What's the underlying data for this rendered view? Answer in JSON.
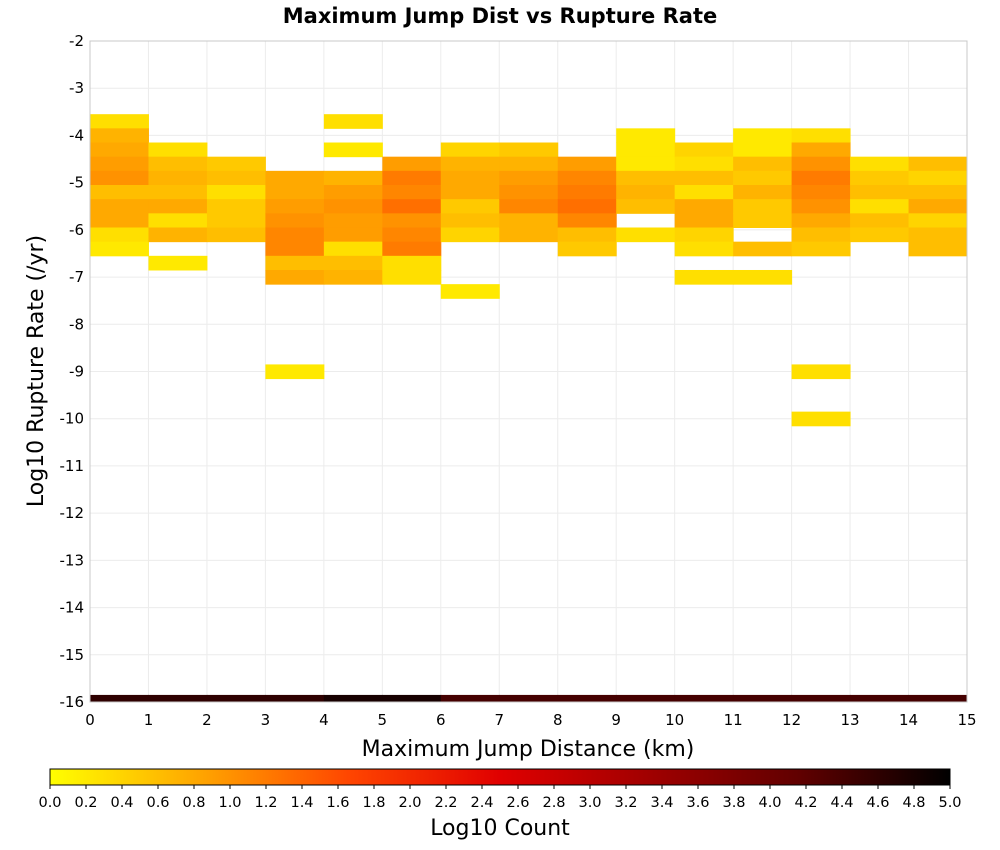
{
  "chart_data": {
    "type": "heatmap",
    "title": "Maximum Jump Dist vs Rupture Rate",
    "xlabel": "Maximum Jump Distance (km)",
    "ylabel": "Log10 Rupture Rate (/yr)",
    "xlim": [
      0,
      15
    ],
    "ylim": [
      -16,
      -2
    ],
    "x_ticks": [
      0,
      1,
      2,
      3,
      4,
      5,
      6,
      7,
      8,
      9,
      10,
      11,
      12,
      13,
      14,
      15
    ],
    "y_ticks": [
      -2,
      -3,
      -4,
      -5,
      -6,
      -7,
      -8,
      -9,
      -10,
      -11,
      -12,
      -13,
      -14,
      -15,
      -16
    ],
    "grid": true,
    "x_bin_width": 1,
    "y_bin_height": 0.3,
    "colorbar": {
      "label": "Log10 Count",
      "range": [
        0.0,
        5.0
      ],
      "ticks": [
        "0.0",
        "0.2",
        "0.4",
        "0.6",
        "0.8",
        "1.0",
        "1.2",
        "1.4",
        "1.6",
        "1.8",
        "2.0",
        "2.2",
        "2.4",
        "2.6",
        "2.8",
        "3.0",
        "3.2",
        "3.4",
        "3.6",
        "3.8",
        "4.0",
        "4.2",
        "4.4",
        "4.6",
        "4.8",
        "5.0"
      ],
      "colors": [
        "#ffff00",
        "#ffa500",
        "#ff4500",
        "#e00000",
        "#a00000",
        "#600000",
        "#000000"
      ]
    },
    "cells": [
      {
        "x": 0,
        "y": -3.7,
        "v": 0.3
      },
      {
        "x": 0,
        "y": -4.0,
        "v": 0.7
      },
      {
        "x": 0,
        "y": -4.3,
        "v": 0.8
      },
      {
        "x": 0,
        "y": -4.6,
        "v": 0.9
      },
      {
        "x": 0,
        "y": -4.9,
        "v": 1.0
      },
      {
        "x": 0,
        "y": -5.2,
        "v": 0.6
      },
      {
        "x": 0,
        "y": -5.5,
        "v": 0.8
      },
      {
        "x": 0,
        "y": -5.8,
        "v": 0.8
      },
      {
        "x": 0,
        "y": -6.1,
        "v": 0.3
      },
      {
        "x": 0,
        "y": -6.4,
        "v": 0.2
      },
      {
        "x": 1,
        "y": -4.3,
        "v": 0.3
      },
      {
        "x": 1,
        "y": -4.6,
        "v": 0.6
      },
      {
        "x": 1,
        "y": -4.9,
        "v": 0.7
      },
      {
        "x": 1,
        "y": -5.2,
        "v": 0.6
      },
      {
        "x": 1,
        "y": -5.5,
        "v": 0.8
      },
      {
        "x": 1,
        "y": -5.8,
        "v": 0.3
      },
      {
        "x": 1,
        "y": -6.1,
        "v": 0.7
      },
      {
        "x": 1,
        "y": -6.7,
        "v": 0.2
      },
      {
        "x": 2,
        "y": -4.6,
        "v": 0.5
      },
      {
        "x": 2,
        "y": -4.9,
        "v": 0.6
      },
      {
        "x": 2,
        "y": -5.2,
        "v": 0.3
      },
      {
        "x": 2,
        "y": -5.5,
        "v": 0.5
      },
      {
        "x": 2,
        "y": -5.8,
        "v": 0.5
      },
      {
        "x": 2,
        "y": -6.1,
        "v": 0.6
      },
      {
        "x": 3,
        "y": -4.9,
        "v": 0.8
      },
      {
        "x": 3,
        "y": -5.2,
        "v": 0.8
      },
      {
        "x": 3,
        "y": -5.5,
        "v": 0.9
      },
      {
        "x": 3,
        "y": -5.8,
        "v": 1.0
      },
      {
        "x": 3,
        "y": -6.1,
        "v": 1.1
      },
      {
        "x": 3,
        "y": -6.4,
        "v": 1.1
      },
      {
        "x": 3,
        "y": -6.7,
        "v": 0.6
      },
      {
        "x": 3,
        "y": -7.0,
        "v": 0.8
      },
      {
        "x": 3,
        "y": -9.0,
        "v": 0.2
      },
      {
        "x": 4,
        "y": -3.7,
        "v": 0.3
      },
      {
        "x": 4,
        "y": -4.3,
        "v": 0.2
      },
      {
        "x": 4,
        "y": -4.9,
        "v": 0.7
      },
      {
        "x": 4,
        "y": -5.2,
        "v": 0.9
      },
      {
        "x": 4,
        "y": -5.5,
        "v": 1.0
      },
      {
        "x": 4,
        "y": -5.8,
        "v": 0.9
      },
      {
        "x": 4,
        "y": -6.1,
        "v": 0.9
      },
      {
        "x": 4,
        "y": -6.4,
        "v": 0.3
      },
      {
        "x": 4,
        "y": -6.7,
        "v": 0.6
      },
      {
        "x": 4,
        "y": -7.0,
        "v": 0.7
      },
      {
        "x": 5,
        "y": -4.6,
        "v": 0.9
      },
      {
        "x": 5,
        "y": -4.9,
        "v": 1.2
      },
      {
        "x": 5,
        "y": -5.2,
        "v": 1.1
      },
      {
        "x": 5,
        "y": -5.5,
        "v": 1.3
      },
      {
        "x": 5,
        "y": -5.8,
        "v": 1.0
      },
      {
        "x": 5,
        "y": -6.1,
        "v": 1.1
      },
      {
        "x": 5,
        "y": -6.4,
        "v": 1.2
      },
      {
        "x": 5,
        "y": -6.7,
        "v": 0.3
      },
      {
        "x": 5,
        "y": -7.0,
        "v": 0.3
      },
      {
        "x": 6,
        "y": -4.3,
        "v": 0.4
      },
      {
        "x": 6,
        "y": -4.6,
        "v": 0.7
      },
      {
        "x": 6,
        "y": -4.9,
        "v": 0.8
      },
      {
        "x": 6,
        "y": -5.2,
        "v": 0.8
      },
      {
        "x": 6,
        "y": -5.5,
        "v": 0.5
      },
      {
        "x": 6,
        "y": -5.8,
        "v": 0.6
      },
      {
        "x": 6,
        "y": -6.1,
        "v": 0.4
      },
      {
        "x": 6,
        "y": -7.3,
        "v": 0.2
      },
      {
        "x": 7,
        "y": -4.3,
        "v": 0.5
      },
      {
        "x": 7,
        "y": -4.6,
        "v": 0.7
      },
      {
        "x": 7,
        "y": -4.9,
        "v": 0.9
      },
      {
        "x": 7,
        "y": -5.2,
        "v": 1.0
      },
      {
        "x": 7,
        "y": -5.5,
        "v": 1.1
      },
      {
        "x": 7,
        "y": -5.8,
        "v": 0.7
      },
      {
        "x": 7,
        "y": -6.1,
        "v": 0.7
      },
      {
        "x": 8,
        "y": -4.6,
        "v": 0.9
      },
      {
        "x": 8,
        "y": -4.9,
        "v": 1.1
      },
      {
        "x": 8,
        "y": -5.2,
        "v": 1.2
      },
      {
        "x": 8,
        "y": -5.5,
        "v": 1.3
      },
      {
        "x": 8,
        "y": -5.8,
        "v": 1.1
      },
      {
        "x": 8,
        "y": -6.1,
        "v": 0.6
      },
      {
        "x": 8,
        "y": -6.4,
        "v": 0.5
      },
      {
        "x": 9,
        "y": -4.0,
        "v": 0.2
      },
      {
        "x": 9,
        "y": -4.3,
        "v": 0.2
      },
      {
        "x": 9,
        "y": -4.6,
        "v": 0.2
      },
      {
        "x": 9,
        "y": -4.9,
        "v": 0.6
      },
      {
        "x": 9,
        "y": -5.2,
        "v": 0.7
      },
      {
        "x": 9,
        "y": -5.5,
        "v": 0.6
      },
      {
        "x": 9,
        "y": -6.1,
        "v": 0.3
      },
      {
        "x": 10,
        "y": -4.3,
        "v": 0.4
      },
      {
        "x": 10,
        "y": -4.6,
        "v": 0.3
      },
      {
        "x": 10,
        "y": -4.9,
        "v": 0.6
      },
      {
        "x": 10,
        "y": -5.2,
        "v": 0.3
      },
      {
        "x": 10,
        "y": -5.5,
        "v": 0.8
      },
      {
        "x": 10,
        "y": -5.8,
        "v": 0.8
      },
      {
        "x": 10,
        "y": -6.1,
        "v": 0.4
      },
      {
        "x": 10,
        "y": -6.4,
        "v": 0.3
      },
      {
        "x": 10,
        "y": -7.0,
        "v": 0.3
      },
      {
        "x": 11,
        "y": -4.0,
        "v": 0.2
      },
      {
        "x": 11,
        "y": -4.3,
        "v": 0.2
      },
      {
        "x": 11,
        "y": -4.6,
        "v": 0.6
      },
      {
        "x": 11,
        "y": -4.9,
        "v": 0.5
      },
      {
        "x": 11,
        "y": -5.2,
        "v": 0.7
      },
      {
        "x": 11,
        "y": -5.5,
        "v": 0.5
      },
      {
        "x": 11,
        "y": -5.8,
        "v": 0.5
      },
      {
        "x": 11,
        "y": -6.4,
        "v": 0.6
      },
      {
        "x": 11,
        "y": -7.0,
        "v": 0.3
      },
      {
        "x": 12,
        "y": -4.0,
        "v": 0.3
      },
      {
        "x": 12,
        "y": -4.3,
        "v": 0.8
      },
      {
        "x": 12,
        "y": -4.6,
        "v": 1.0
      },
      {
        "x": 12,
        "y": -4.9,
        "v": 1.2
      },
      {
        "x": 12,
        "y": -5.2,
        "v": 1.1
      },
      {
        "x": 12,
        "y": -5.5,
        "v": 1.0
      },
      {
        "x": 12,
        "y": -5.8,
        "v": 0.8
      },
      {
        "x": 12,
        "y": -6.1,
        "v": 0.6
      },
      {
        "x": 12,
        "y": -6.4,
        "v": 0.5
      },
      {
        "x": 12,
        "y": -9.0,
        "v": 0.3
      },
      {
        "x": 12,
        "y": -10.0,
        "v": 0.3
      },
      {
        "x": 13,
        "y": -4.6,
        "v": 0.3
      },
      {
        "x": 13,
        "y": -4.9,
        "v": 0.5
      },
      {
        "x": 13,
        "y": -5.2,
        "v": 0.6
      },
      {
        "x": 13,
        "y": -5.5,
        "v": 0.3
      },
      {
        "x": 13,
        "y": -5.8,
        "v": 0.6
      },
      {
        "x": 13,
        "y": -6.1,
        "v": 0.5
      },
      {
        "x": 14,
        "y": -4.6,
        "v": 0.6
      },
      {
        "x": 14,
        "y": -4.9,
        "v": 0.4
      },
      {
        "x": 14,
        "y": -5.2,
        "v": 0.6
      },
      {
        "x": 14,
        "y": -5.5,
        "v": 0.8
      },
      {
        "x": 14,
        "y": -5.8,
        "v": 0.4
      },
      {
        "x": 14,
        "y": -6.1,
        "v": 0.6
      },
      {
        "x": 14,
        "y": -6.4,
        "v": 0.6
      }
    ],
    "bottom_row": {
      "y": -16,
      "values": [
        4.6,
        4.6,
        4.6,
        4.6,
        4.8,
        4.8,
        4.4,
        4.4,
        4.4,
        4.4,
        4.4,
        4.4,
        4.4,
        4.4,
        4.4
      ]
    }
  }
}
